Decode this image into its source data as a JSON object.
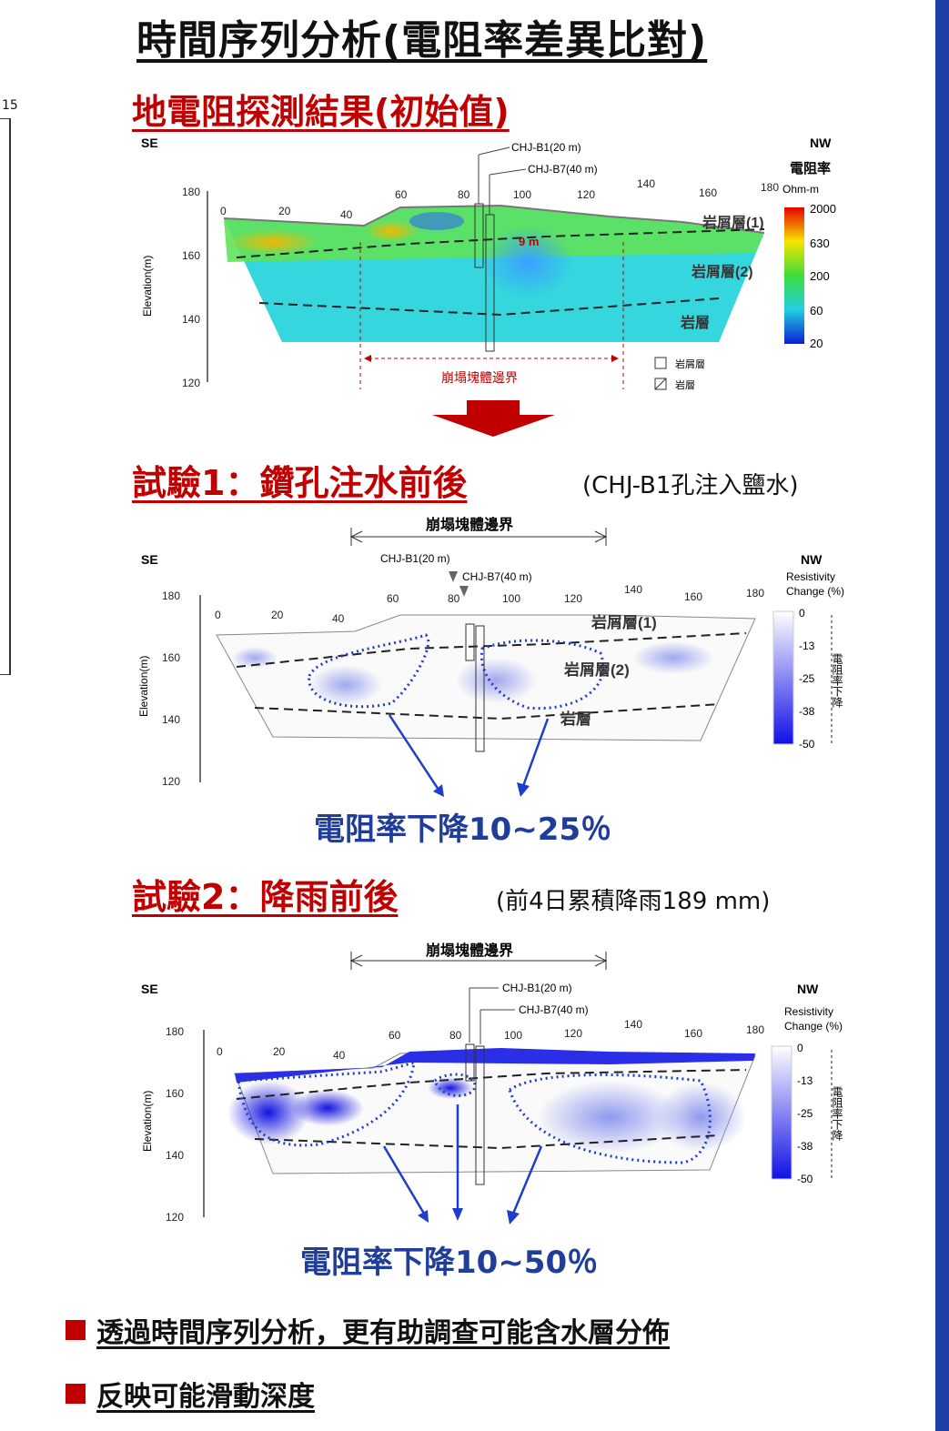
{
  "title": "時間序列分析(電阻率差異比對)",
  "left_fragment": "15",
  "section1": {
    "heading": "地電阻探測結果(初始值)"
  },
  "section2": {
    "heading": "試驗1：鑽孔注水前後",
    "note": "(CHJ-B1孔注入鹽水)",
    "result": "電阻率下降10~25％"
  },
  "section3": {
    "heading": "試驗2：降雨前後",
    "note": "(前4日累積降雨189 mm)",
    "result": "電阻率下降10~50％"
  },
  "bullets": [
    "透過時間序列分析，更有助調查可能含水層分佈",
    "反映可能滑動深度"
  ],
  "profile": {
    "se": "SE",
    "nw": "NW",
    "ylabel": "Elevation(m)",
    "y_ticks": [
      180,
      160,
      140,
      120
    ],
    "x_ticks": [
      0,
      20,
      40,
      60,
      80,
      100,
      120,
      140,
      160,
      180
    ],
    "boreholes": {
      "b1": "CHJ-B1(20 m)",
      "b7": "CHJ-B7(40 m)"
    },
    "layers": {
      "l1": "岩屑層(1)",
      "l2": "岩屑層(2)",
      "rock": "岩層"
    },
    "boundary": "崩塌塊體邊界",
    "depth_mark": "9 m"
  },
  "legend1": {
    "title": "電阻率",
    "unit": "Ohm-m",
    "ticks": [
      "2000",
      "630",
      "200",
      "60",
      "20"
    ],
    "key": [
      "岩屑層",
      "岩層"
    ]
  },
  "legend2": {
    "title1": "Resistivity",
    "title2": "Change (%)",
    "ticks": [
      "0",
      "-13",
      "-25",
      "-38",
      "-50"
    ],
    "side": "電阻率下降"
  },
  "colors": {
    "red": "#c00000",
    "blue": "#1f3d99",
    "bar": "#1f3fa8"
  }
}
